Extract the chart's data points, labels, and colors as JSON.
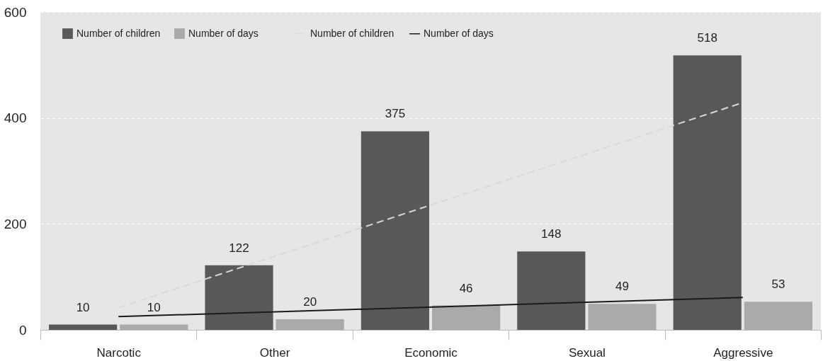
{
  "chart_data": {
    "type": "bar",
    "categories": [
      "Narcotic",
      "Other",
      "Economic",
      "Sexual",
      "Aggressive"
    ],
    "series": [
      {
        "name": "Number of children",
        "color": "#58585a",
        "values": [
          10,
          122,
          375,
          148,
          518
        ],
        "value_labels": [
          "10",
          "122",
          "375",
          "148",
          "518"
        ]
      },
      {
        "name": "Number of days",
        "color": "#aaaaac",
        "values": [
          10,
          20,
          46,
          49,
          53
        ],
        "value_labels": [
          "10",
          "20",
          "46",
          "49",
          "53"
        ]
      },
      {
        "name": "Number of children",
        "type": "line",
        "x": [
          "Narcotic",
          "Aggressive"
        ],
        "values": [
          42,
          429
        ],
        "color": "#d8d8d8",
        "line_style": "dashed"
      },
      {
        "name": "Number of days",
        "type": "line",
        "x": [
          "Narcotic",
          "Aggressive"
        ],
        "values": [
          25,
          61
        ],
        "color": "#1a1a1a",
        "line_style": "solid"
      }
    ],
    "ylim": [
      0,
      600
    ],
    "yticks": [
      0,
      200,
      400,
      600
    ],
    "grid": "y",
    "legend": "top left"
  }
}
